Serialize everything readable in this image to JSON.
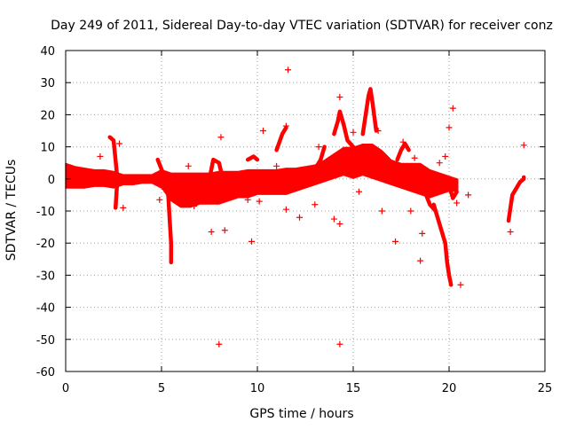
{
  "colors": {
    "series": "#ff0000",
    "grid": "#a0a0a0",
    "axis": "#000000",
    "background": "#ffffff"
  },
  "chart_data": {
    "type": "scatter",
    "title": "Day 249 of 2011, Sidereal Day-to-day VTEC variation (SDTVAR) for receiver conz",
    "xlabel": "GPS time / hours",
    "ylabel": "SDTVAR / TECUs",
    "xlim": [
      0,
      25
    ],
    "ylim": [
      -60,
      40
    ],
    "xticks": [
      "0",
      "5",
      "10",
      "15",
      "20",
      "25"
    ],
    "yticks": [
      "-60",
      "-50",
      "-40",
      "-30",
      "-20",
      "-10",
      "0",
      "10",
      "20",
      "30",
      "40"
    ],
    "grid": true,
    "marker": "+",
    "series": [
      {
        "name": "SDTVAR",
        "band": [
          [
            0.0,
            -3,
            5
          ],
          [
            0.5,
            -3,
            4
          ],
          [
            1.0,
            -3,
            3.5
          ],
          [
            1.5,
            -2.5,
            3
          ],
          [
            2.0,
            -2.5,
            3
          ],
          [
            2.5,
            -3,
            2.5
          ],
          [
            3.0,
            -2,
            1.5
          ],
          [
            3.5,
            -2,
            1.5
          ],
          [
            4.0,
            -1.5,
            1.5
          ],
          [
            4.5,
            -1.5,
            1.5
          ],
          [
            5.0,
            -3,
            3
          ],
          [
            5.5,
            -7,
            2
          ],
          [
            6.0,
            -9,
            2
          ],
          [
            6.5,
            -9,
            2
          ],
          [
            7.0,
            -8,
            2
          ],
          [
            7.5,
            -8,
            2
          ],
          [
            8.0,
            -8,
            2.5
          ],
          [
            8.5,
            -7,
            2.5
          ],
          [
            9.0,
            -6,
            2.5
          ],
          [
            9.5,
            -6,
            3
          ],
          [
            10.0,
            -5,
            3
          ],
          [
            10.5,
            -5,
            3
          ],
          [
            11.0,
            -5,
            3
          ],
          [
            11.5,
            -5,
            3.5
          ],
          [
            12.0,
            -4,
            3.5
          ],
          [
            12.5,
            -3,
            4
          ],
          [
            13.0,
            -2,
            4.5
          ],
          [
            13.5,
            -1,
            6
          ],
          [
            14.0,
            0,
            8
          ],
          [
            14.5,
            1,
            10
          ],
          [
            15.0,
            0,
            10
          ],
          [
            15.5,
            1,
            11
          ],
          [
            16.0,
            0,
            11
          ],
          [
            16.5,
            -1,
            9
          ],
          [
            17.0,
            -2,
            6
          ],
          [
            17.5,
            -3,
            5
          ],
          [
            18.0,
            -4,
            5
          ],
          [
            18.5,
            -5,
            5
          ],
          [
            19.0,
            -6,
            3
          ],
          [
            19.5,
            -5,
            2
          ],
          [
            20.0,
            -4,
            1
          ],
          [
            20.5,
            -4,
            0
          ]
        ],
        "spikes": [
          [
            [
              2.3,
              13
            ],
            [
              2.5,
              12
            ],
            [
              2.7,
              0
            ],
            [
              2.6,
              -9
            ]
          ],
          [
            [
              4.8,
              6
            ],
            [
              5.0,
              3
            ],
            [
              5.3,
              -2
            ]
          ],
          [
            [
              5.3,
              0
            ],
            [
              5.4,
              -10
            ],
            [
              5.5,
              -20
            ],
            [
              5.5,
              -26
            ]
          ],
          [
            [
              7.5,
              0
            ],
            [
              7.7,
              6
            ],
            [
              8.0,
              5
            ],
            [
              8.2,
              0
            ]
          ],
          [
            [
              9.5,
              6
            ],
            [
              9.8,
              7
            ],
            [
              10.0,
              6
            ]
          ],
          [
            [
              11.0,
              9
            ],
            [
              11.3,
              14
            ],
            [
              11.5,
              16
            ]
          ],
          [
            [
              12.5,
              1
            ],
            [
              13.0,
              3
            ],
            [
              13.3,
              6
            ],
            [
              13.5,
              10
            ]
          ],
          [
            [
              14.0,
              14
            ],
            [
              14.2,
              18
            ],
            [
              14.3,
              21
            ],
            [
              14.5,
              17
            ],
            [
              14.7,
              12
            ],
            [
              15.0,
              10
            ]
          ],
          [
            [
              15.5,
              14
            ],
            [
              15.7,
              22
            ],
            [
              15.8,
              26
            ],
            [
              15.9,
              28
            ],
            [
              16.0,
              24
            ],
            [
              16.2,
              15
            ]
          ],
          [
            [
              17.3,
              6
            ],
            [
              17.5,
              9
            ],
            [
              17.7,
              11
            ],
            [
              17.9,
              9
            ]
          ],
          [
            [
              18.5,
              0
            ],
            [
              18.8,
              -5
            ],
            [
              19.0,
              -8
            ],
            [
              19.3,
              -10
            ]
          ],
          [
            [
              19.2,
              -8
            ],
            [
              19.5,
              -14
            ],
            [
              19.8,
              -20
            ],
            [
              19.9,
              -26
            ],
            [
              20.0,
              -30
            ],
            [
              20.1,
              -33
            ]
          ],
          [
            [
              20.0,
              -2
            ],
            [
              20.2,
              -6
            ],
            [
              20.4,
              -4
            ]
          ],
          [
            [
              23.1,
              -13
            ],
            [
              23.2,
              -9
            ],
            [
              23.3,
              -5
            ],
            [
              23.5,
              -3
            ],
            [
              23.7,
              -1
            ],
            [
              23.9,
              0
            ],
            [
              23.9,
              0.5
            ]
          ]
        ],
        "points": [
          [
            11.6,
            34
          ],
          [
            14.3,
            25.5
          ],
          [
            16.3,
            15
          ],
          [
            15.0,
            14.5
          ],
          [
            17.6,
            11.5
          ],
          [
            8.1,
            13
          ],
          [
            10.3,
            15
          ],
          [
            11.5,
            16.5
          ],
          [
            20.2,
            22
          ],
          [
            20.0,
            16
          ],
          [
            19.8,
            7
          ],
          [
            18.2,
            6.5
          ],
          [
            19.5,
            5
          ],
          [
            6.4,
            4
          ],
          [
            1.8,
            7
          ],
          [
            2.8,
            11
          ],
          [
            13.2,
            10
          ],
          [
            11.0,
            4
          ],
          [
            12.5,
            2
          ],
          [
            4.9,
            -6.5
          ],
          [
            6.7,
            -8.5
          ],
          [
            9.5,
            -6.5
          ],
          [
            10.1,
            -7
          ],
          [
            11.5,
            -9.5
          ],
          [
            12.2,
            -12
          ],
          [
            13.0,
            -8
          ],
          [
            14.0,
            -12.5
          ],
          [
            14.3,
            -14
          ],
          [
            15.3,
            -4
          ],
          [
            18.0,
            -10
          ],
          [
            18.5,
            -25.5
          ],
          [
            18.6,
            -17
          ],
          [
            20.6,
            -33
          ],
          [
            7.6,
            -16.5
          ],
          [
            8.3,
            -16
          ],
          [
            9.7,
            -19.5
          ],
          [
            17.2,
            -19.5
          ],
          [
            23.2,
            -16.5
          ],
          [
            8.0,
            -51.5
          ],
          [
            14.3,
            -51.5
          ],
          [
            23.9,
            10.5
          ],
          [
            20.4,
            -7.5
          ],
          [
            21.0,
            -5
          ],
          [
            16.5,
            -10
          ],
          [
            3.0,
            -9
          ]
        ]
      }
    ]
  }
}
